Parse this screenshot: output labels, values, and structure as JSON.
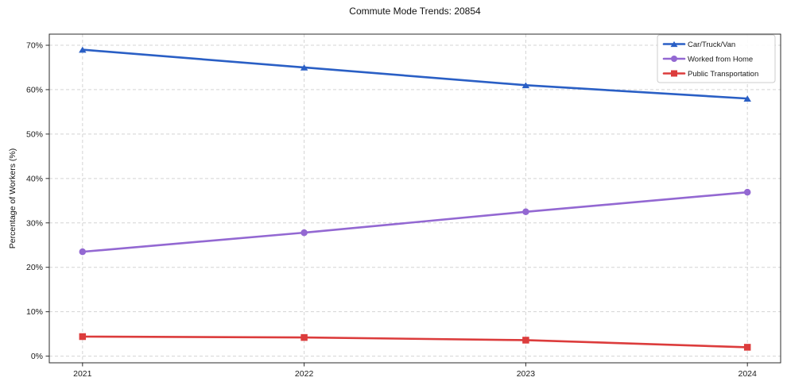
{
  "chart_data": {
    "type": "line",
    "title": "Commute Mode Trends: 20854",
    "xlabel": "",
    "ylabel": "Percentage of Workers (%)",
    "x": [
      2021,
      2022,
      2023,
      2024
    ],
    "series": [
      {
        "name": "Car/Truck/Van",
        "color": "#2a5fc5",
        "marker": "triangle",
        "values": [
          69,
          65,
          61,
          58
        ]
      },
      {
        "name": "Worked from Home",
        "color": "#9368d2",
        "marker": "circle",
        "values": [
          23.5,
          27.8,
          32.5,
          36.9
        ]
      },
      {
        "name": "Public Transportation",
        "color": "#dc3c3c",
        "marker": "square",
        "values": [
          4.4,
          4.2,
          3.6,
          2.0
        ]
      }
    ],
    "yticks": [
      0,
      10,
      20,
      30,
      40,
      50,
      60,
      70
    ],
    "ytick_suffix": "%",
    "ylim": [
      -1.5,
      72.5
    ],
    "xlim": [
      2020.85,
      2024.15
    ],
    "grid": true,
    "grid_style": "dashed",
    "grid_color": "#d4d4d4",
    "spine_color": "#2b2b2b",
    "legend_position": "top-right",
    "legend_border_color": "#cccccc",
    "background_color": "#ffffff"
  }
}
